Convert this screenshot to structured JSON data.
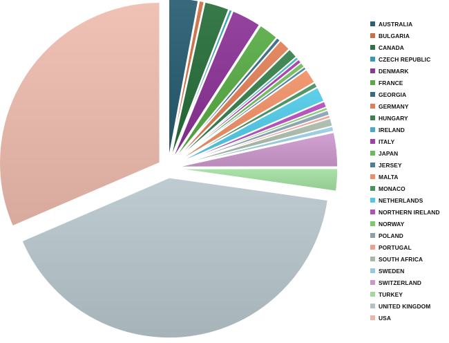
{
  "chart_data": {
    "type": "pie",
    "title": "",
    "legend_position": "right",
    "exploded": true,
    "slices": [
      {
        "label": "AUSTRALIA",
        "value": 3.0,
        "color": "#2e5f73"
      },
      {
        "label": "BULGARIA",
        "value": 0.5,
        "color": "#c7704a"
      },
      {
        "label": "CANADA",
        "value": 2.5,
        "color": "#2f7040"
      },
      {
        "label": "CZECH REPUBLIC",
        "value": 0.3,
        "color": "#3a9aad"
      },
      {
        "label": "DENMARK",
        "value": 3.0,
        "color": "#8a3a94"
      },
      {
        "label": "FRANCE",
        "value": 2.0,
        "color": "#5aa84a"
      },
      {
        "label": "GEORGIA",
        "value": 0.4,
        "color": "#3b6a80"
      },
      {
        "label": "GERMANY",
        "value": 1.2,
        "color": "#d9805a"
      },
      {
        "label": "HUNGARY",
        "value": 1.0,
        "color": "#3d8050"
      },
      {
        "label": "IRELAND",
        "value": 0.3,
        "color": "#4aaac0"
      },
      {
        "label": "ITALY",
        "value": 0.4,
        "color": "#a040a8"
      },
      {
        "label": "JAPAN",
        "value": 0.5,
        "color": "#70b860"
      },
      {
        "label": "JERSEY",
        "value": 0.3,
        "color": "#4a7f96"
      },
      {
        "label": "MALTA",
        "value": 1.5,
        "color": "#e8906a"
      },
      {
        "label": "MONACO",
        "value": 0.5,
        "color": "#4a9060"
      },
      {
        "label": "NETHERLANDS",
        "value": 1.5,
        "color": "#55c5e0"
      },
      {
        "label": "NORTHERN IRELAND",
        "value": 0.6,
        "color": "#b050b8"
      },
      {
        "label": "NORWAY",
        "value": 0.3,
        "color": "#80c870"
      },
      {
        "label": "POLAND",
        "value": 0.5,
        "color": "#8aa0b0"
      },
      {
        "label": "PORTUGAL",
        "value": 0.3,
        "color": "#e8a090"
      },
      {
        "label": "SOUTH AFRICA",
        "value": 0.8,
        "color": "#a8b8a8"
      },
      {
        "label": "SWEDEN",
        "value": 0.5,
        "color": "#98c8dc"
      },
      {
        "label": "SWITZERLAND",
        "value": 3.5,
        "color": "#c898c8"
      },
      {
        "label": "TURKEY",
        "value": 2.3,
        "color": "#a0d8a0"
      },
      {
        "label": "UNITED KINGDOM",
        "value": 42.0,
        "color": "#b4c2c8"
      },
      {
        "label": "USA",
        "value": 32.0,
        "color": "#e6b8ac"
      }
    ]
  }
}
